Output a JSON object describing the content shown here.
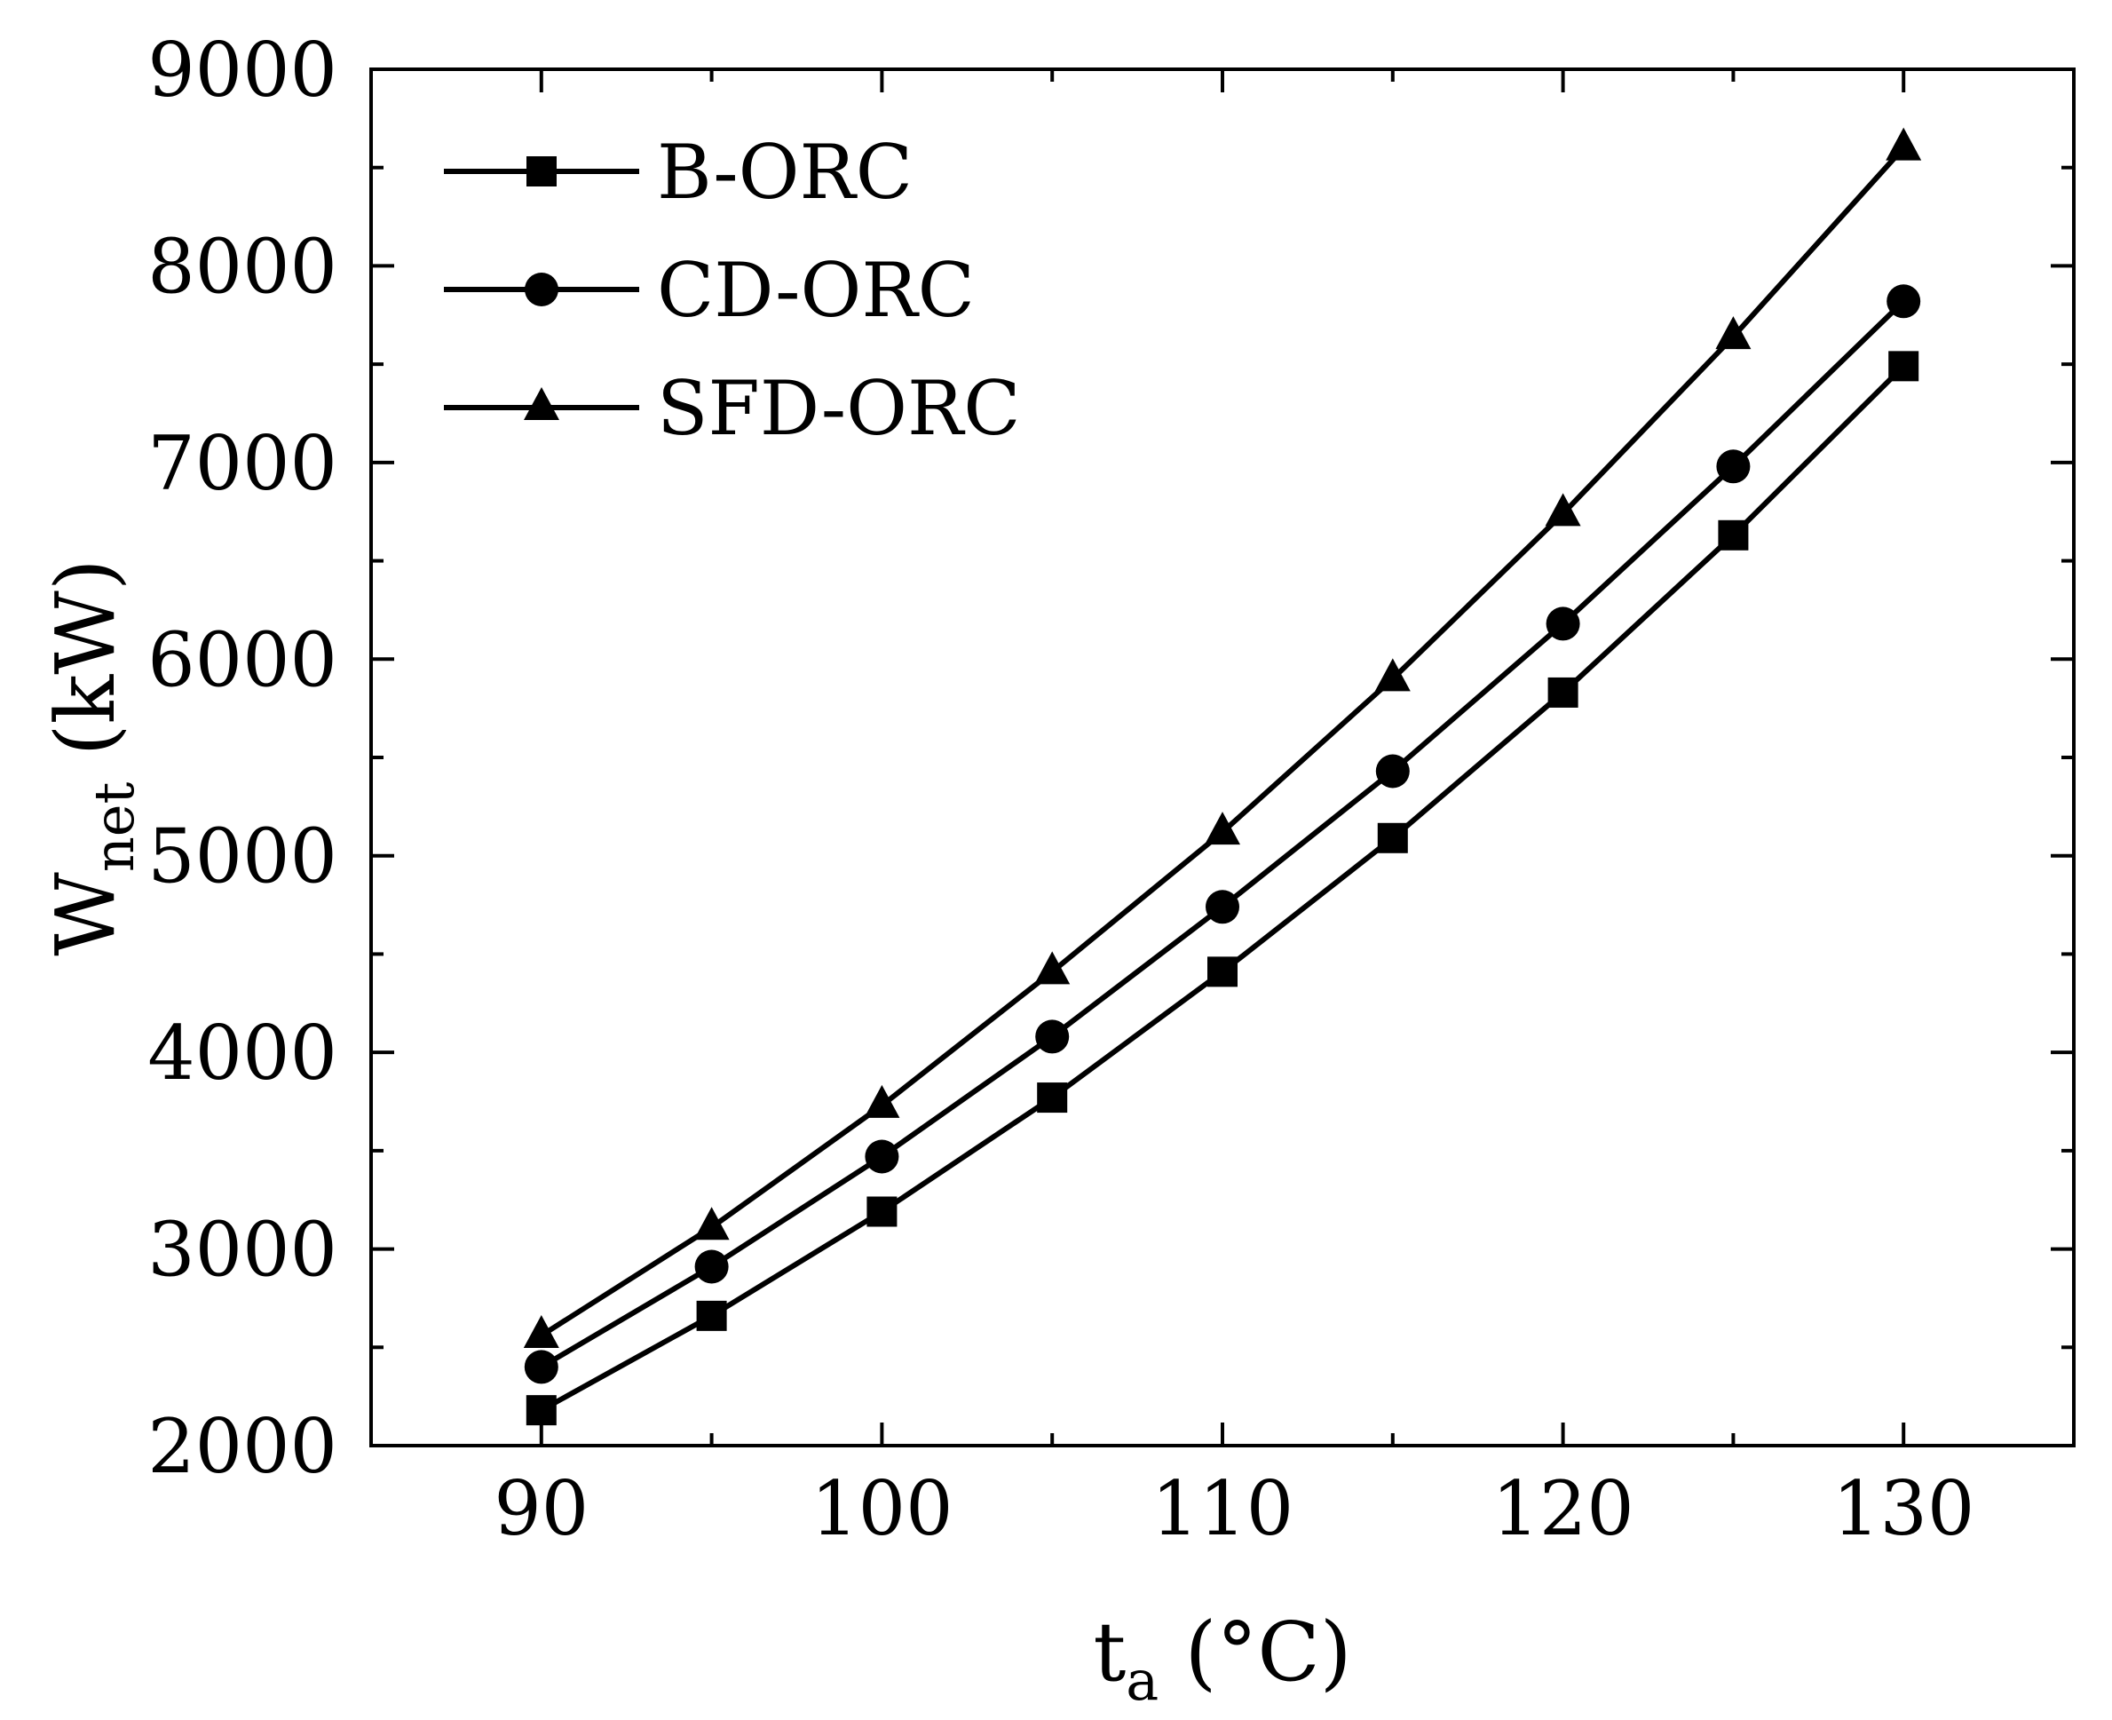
{
  "chart_data": {
    "type": "line",
    "title": "",
    "xlabel": {
      "main": "t",
      "sub": "a",
      "unit": " (°C)"
    },
    "ylabel": {
      "main": "W",
      "sub": "net",
      "unit": " (kW)"
    },
    "xlim": [
      85,
      135
    ],
    "ylim": [
      2000,
      9000
    ],
    "xticks": [
      90,
      100,
      110,
      120,
      130
    ],
    "xminor": [
      95,
      105,
      115,
      125
    ],
    "yticks": [
      2000,
      3000,
      4000,
      5000,
      6000,
      7000,
      8000,
      9000
    ],
    "yminor": [
      2500,
      3500,
      4500,
      5500,
      6500,
      7500,
      8500
    ],
    "grid": false,
    "legend_position": "top-left",
    "x": [
      90,
      95,
      100,
      105,
      110,
      115,
      120,
      125,
      130
    ],
    "series": [
      {
        "name": "B-ORC",
        "marker": "square",
        "values": [
          2180,
          2660,
          3190,
          3770,
          4410,
          5090,
          5830,
          6630,
          7490
        ]
      },
      {
        "name": "CD-ORC",
        "marker": "circle",
        "values": [
          2400,
          2910,
          3470,
          4080,
          4740,
          5430,
          6180,
          6980,
          7820
        ]
      },
      {
        "name": "SFD-ORC",
        "marker": "triangle",
        "values": [
          2560,
          3110,
          3730,
          4410,
          5120,
          5900,
          6740,
          7640,
          8600
        ]
      }
    ],
    "color": "#000000"
  }
}
